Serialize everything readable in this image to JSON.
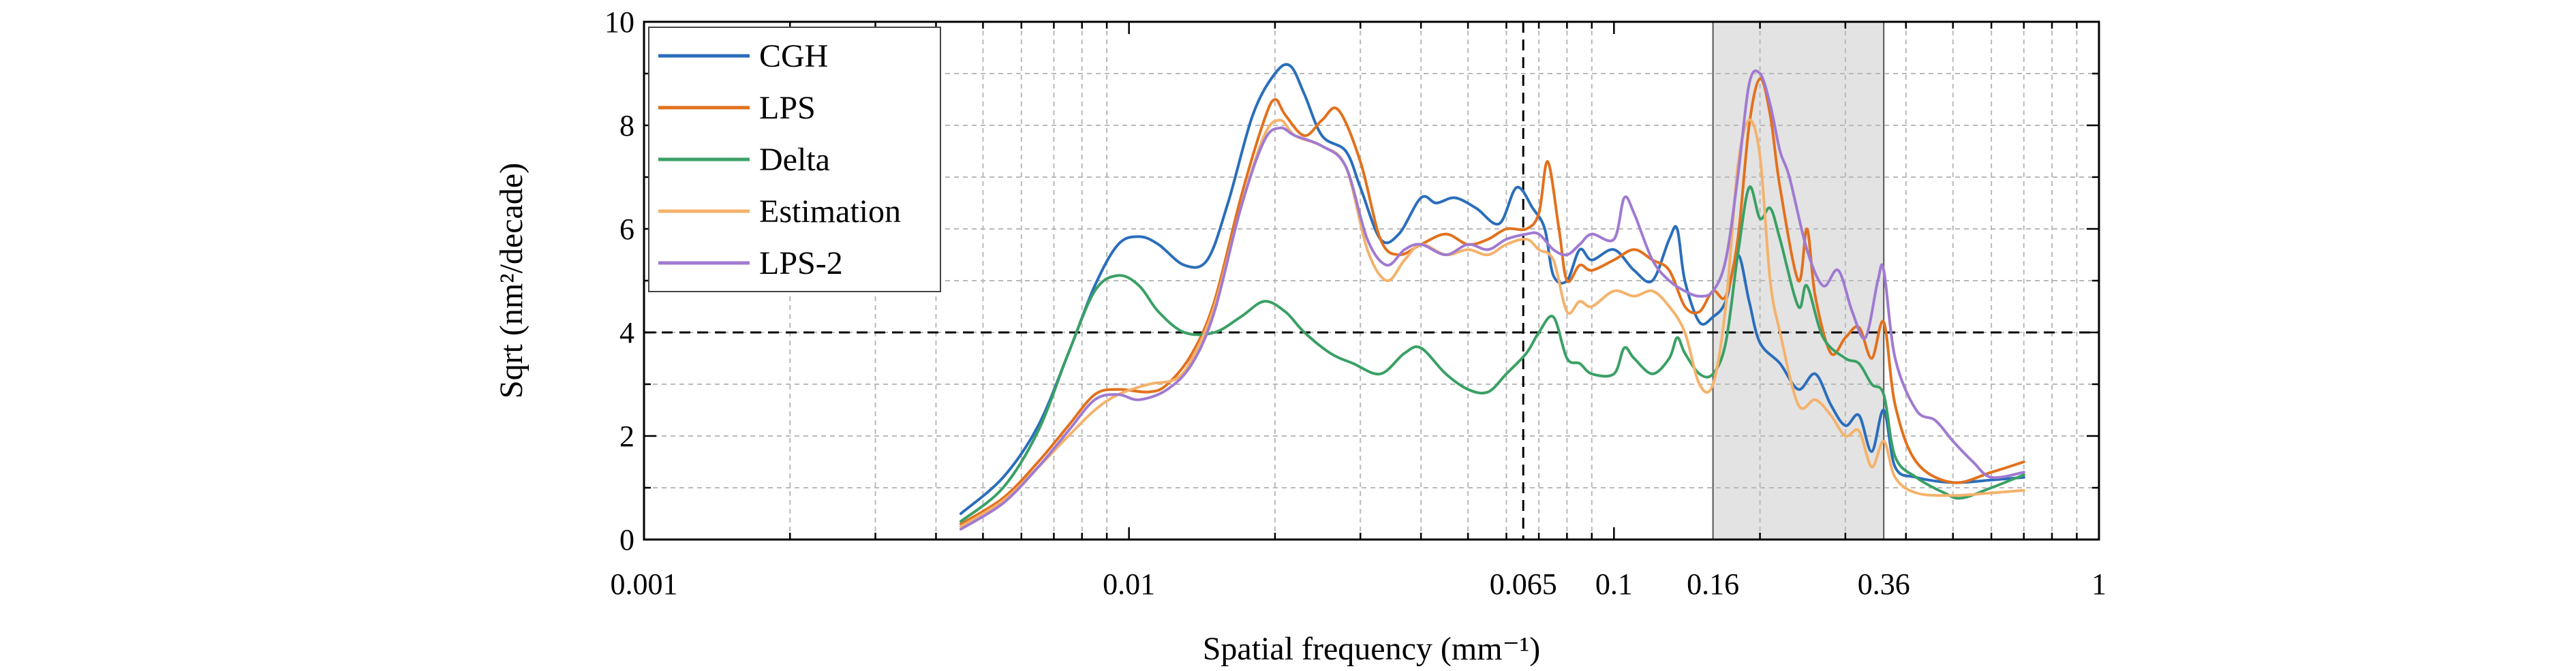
{
  "chart_data": {
    "type": "line",
    "title": "",
    "xlabel": "Spatial frequency (mm⁻¹)",
    "ylabel": "Sqrt (nm²/decade)",
    "xscale": "log",
    "xlim": [
      0.001,
      1
    ],
    "ylim": [
      0,
      10
    ],
    "grid": true,
    "legend_position": "top-left",
    "x_tick_labels": [
      {
        "value": 0.001,
        "label": "0.001"
      },
      {
        "value": 0.01,
        "label": "0.01"
      },
      {
        "value": 0.065,
        "label": "0.065"
      },
      {
        "value": 0.1,
        "label": "0.1"
      },
      {
        "value": 0.16,
        "label": "0.16"
      },
      {
        "value": 0.36,
        "label": "0.36"
      },
      {
        "value": 1,
        "label": "1"
      }
    ],
    "y_tick_labels": [
      {
        "value": 0,
        "label": "0"
      },
      {
        "value": 2,
        "label": "2"
      },
      {
        "value": 4,
        "label": "4"
      },
      {
        "value": 6,
        "label": "6"
      },
      {
        "value": 8,
        "label": "8"
      },
      {
        "value": 10,
        "label": "10"
      }
    ],
    "reference_lines": [
      {
        "orientation": "vertical",
        "value": 0.065,
        "style": "dashed"
      },
      {
        "orientation": "horizontal",
        "value": 4,
        "style": "dashed"
      }
    ],
    "shaded_band": {
      "x_from": 0.16,
      "x_to": 0.36,
      "color": "#e3e3e3"
    },
    "series": [
      {
        "name": "CGH",
        "color": "#2a6ebb",
        "points": [
          [
            0.0045,
            0.5
          ],
          [
            0.0055,
            1.2
          ],
          [
            0.0065,
            2.2
          ],
          [
            0.0075,
            3.6
          ],
          [
            0.0085,
            4.9
          ],
          [
            0.0095,
            5.7
          ],
          [
            0.0105,
            5.85
          ],
          [
            0.0115,
            5.7
          ],
          [
            0.013,
            5.3
          ],
          [
            0.0145,
            5.4
          ],
          [
            0.016,
            6.5
          ],
          [
            0.018,
            8.2
          ],
          [
            0.02,
            9.0
          ],
          [
            0.0215,
            9.15
          ],
          [
            0.023,
            8.6
          ],
          [
            0.025,
            7.8
          ],
          [
            0.028,
            7.5
          ],
          [
            0.03,
            6.8
          ],
          [
            0.033,
            5.8
          ],
          [
            0.036,
            5.9
          ],
          [
            0.04,
            6.6
          ],
          [
            0.043,
            6.5
          ],
          [
            0.047,
            6.6
          ],
          [
            0.052,
            6.4
          ],
          [
            0.058,
            6.1
          ],
          [
            0.063,
            6.8
          ],
          [
            0.068,
            6.4
          ],
          [
            0.072,
            6.0
          ],
          [
            0.075,
            5.1
          ],
          [
            0.08,
            5.0
          ],
          [
            0.085,
            5.6
          ],
          [
            0.09,
            5.4
          ],
          [
            0.1,
            5.6
          ],
          [
            0.11,
            5.2
          ],
          [
            0.12,
            5.0
          ],
          [
            0.13,
            5.8
          ],
          [
            0.135,
            6.0
          ],
          [
            0.14,
            5.0
          ],
          [
            0.15,
            4.2
          ],
          [
            0.16,
            4.3
          ],
          [
            0.17,
            4.6
          ],
          [
            0.18,
            5.5
          ],
          [
            0.19,
            4.6
          ],
          [
            0.2,
            3.8
          ],
          [
            0.22,
            3.4
          ],
          [
            0.24,
            2.9
          ],
          [
            0.26,
            3.2
          ],
          [
            0.28,
            2.6
          ],
          [
            0.3,
            2.2
          ],
          [
            0.32,
            2.4
          ],
          [
            0.34,
            1.7
          ],
          [
            0.36,
            2.5
          ],
          [
            0.38,
            1.4
          ],
          [
            0.42,
            1.2
          ],
          [
            0.5,
            1.1
          ],
          [
            0.6,
            1.15
          ],
          [
            0.7,
            1.2
          ]
        ]
      },
      {
        "name": "LPS",
        "color": "#e2711d",
        "points": [
          [
            0.0045,
            0.3
          ],
          [
            0.0055,
            0.8
          ],
          [
            0.0065,
            1.5
          ],
          [
            0.0075,
            2.2
          ],
          [
            0.0085,
            2.8
          ],
          [
            0.0095,
            2.9
          ],
          [
            0.011,
            2.85
          ],
          [
            0.012,
            3.0
          ],
          [
            0.0135,
            3.6
          ],
          [
            0.015,
            4.6
          ],
          [
            0.017,
            6.6
          ],
          [
            0.019,
            8.1
          ],
          [
            0.02,
            8.5
          ],
          [
            0.021,
            8.2
          ],
          [
            0.023,
            7.8
          ],
          [
            0.025,
            8.1
          ],
          [
            0.027,
            8.3
          ],
          [
            0.03,
            7.3
          ],
          [
            0.033,
            5.8
          ],
          [
            0.036,
            5.5
          ],
          [
            0.04,
            5.7
          ],
          [
            0.045,
            5.9
          ],
          [
            0.05,
            5.7
          ],
          [
            0.055,
            5.8
          ],
          [
            0.06,
            6.0
          ],
          [
            0.066,
            6.0
          ],
          [
            0.07,
            6.3
          ],
          [
            0.073,
            7.3
          ],
          [
            0.077,
            6.0
          ],
          [
            0.08,
            5.0
          ],
          [
            0.085,
            5.3
          ],
          [
            0.09,
            5.2
          ],
          [
            0.1,
            5.4
          ],
          [
            0.11,
            5.6
          ],
          [
            0.12,
            5.4
          ],
          [
            0.13,
            5.2
          ],
          [
            0.14,
            4.5
          ],
          [
            0.15,
            4.4
          ],
          [
            0.16,
            4.8
          ],
          [
            0.17,
            4.7
          ],
          [
            0.18,
            5.8
          ],
          [
            0.19,
            8.0
          ],
          [
            0.2,
            8.9
          ],
          [
            0.21,
            8.2
          ],
          [
            0.22,
            6.8
          ],
          [
            0.24,
            5.0
          ],
          [
            0.25,
            6.0
          ],
          [
            0.26,
            4.7
          ],
          [
            0.28,
            3.6
          ],
          [
            0.3,
            3.9
          ],
          [
            0.32,
            4.1
          ],
          [
            0.34,
            3.5
          ],
          [
            0.36,
            4.2
          ],
          [
            0.38,
            2.6
          ],
          [
            0.42,
            1.5
          ],
          [
            0.5,
            1.1
          ],
          [
            0.6,
            1.3
          ],
          [
            0.7,
            1.5
          ]
        ]
      },
      {
        "name": "Delta",
        "color": "#3aa065",
        "points": [
          [
            0.0045,
            0.35
          ],
          [
            0.0055,
            1.0
          ],
          [
            0.0065,
            2.1
          ],
          [
            0.0075,
            3.6
          ],
          [
            0.0085,
            4.8
          ],
          [
            0.0095,
            5.1
          ],
          [
            0.0105,
            4.9
          ],
          [
            0.0115,
            4.4
          ],
          [
            0.013,
            4.0
          ],
          [
            0.015,
            4.0
          ],
          [
            0.017,
            4.3
          ],
          [
            0.019,
            4.6
          ],
          [
            0.021,
            4.4
          ],
          [
            0.023,
            4.0
          ],
          [
            0.026,
            3.6
          ],
          [
            0.029,
            3.4
          ],
          [
            0.033,
            3.2
          ],
          [
            0.037,
            3.6
          ],
          [
            0.04,
            3.7
          ],
          [
            0.045,
            3.2
          ],
          [
            0.05,
            2.9
          ],
          [
            0.055,
            2.85
          ],
          [
            0.06,
            3.2
          ],
          [
            0.066,
            3.6
          ],
          [
            0.07,
            4.0
          ],
          [
            0.075,
            4.3
          ],
          [
            0.08,
            3.5
          ],
          [
            0.085,
            3.4
          ],
          [
            0.09,
            3.2
          ],
          [
            0.1,
            3.2
          ],
          [
            0.105,
            3.7
          ],
          [
            0.11,
            3.5
          ],
          [
            0.12,
            3.2
          ],
          [
            0.13,
            3.5
          ],
          [
            0.135,
            3.9
          ],
          [
            0.14,
            3.6
          ],
          [
            0.15,
            3.2
          ],
          [
            0.16,
            3.2
          ],
          [
            0.17,
            3.8
          ],
          [
            0.18,
            5.5
          ],
          [
            0.19,
            6.8
          ],
          [
            0.2,
            6.2
          ],
          [
            0.21,
            6.4
          ],
          [
            0.22,
            5.8
          ],
          [
            0.24,
            4.5
          ],
          [
            0.25,
            4.9
          ],
          [
            0.27,
            3.9
          ],
          [
            0.3,
            3.5
          ],
          [
            0.32,
            3.4
          ],
          [
            0.34,
            3.0
          ],
          [
            0.36,
            2.8
          ],
          [
            0.38,
            1.6
          ],
          [
            0.42,
            1.2
          ],
          [
            0.48,
            0.9
          ],
          [
            0.52,
            0.8
          ],
          [
            0.6,
            1.0
          ],
          [
            0.7,
            1.25
          ]
        ]
      },
      {
        "name": "Estimation",
        "color": "#f4b26b",
        "points": [
          [
            0.0045,
            0.25
          ],
          [
            0.0055,
            0.75
          ],
          [
            0.0065,
            1.4
          ],
          [
            0.0075,
            2.0
          ],
          [
            0.0085,
            2.5
          ],
          [
            0.0095,
            2.8
          ],
          [
            0.011,
            3.0
          ],
          [
            0.0125,
            3.1
          ],
          [
            0.0135,
            3.5
          ],
          [
            0.015,
            4.5
          ],
          [
            0.017,
            6.4
          ],
          [
            0.019,
            7.8
          ],
          [
            0.0205,
            8.1
          ],
          [
            0.022,
            7.8
          ],
          [
            0.025,
            7.6
          ],
          [
            0.028,
            7.2
          ],
          [
            0.031,
            5.6
          ],
          [
            0.034,
            5.0
          ],
          [
            0.037,
            5.4
          ],
          [
            0.04,
            5.7
          ],
          [
            0.045,
            5.5
          ],
          [
            0.05,
            5.6
          ],
          [
            0.055,
            5.5
          ],
          [
            0.06,
            5.7
          ],
          [
            0.066,
            5.8
          ],
          [
            0.07,
            5.6
          ],
          [
            0.075,
            5.4
          ],
          [
            0.08,
            4.4
          ],
          [
            0.085,
            4.6
          ],
          [
            0.09,
            4.5
          ],
          [
            0.1,
            4.8
          ],
          [
            0.11,
            4.7
          ],
          [
            0.12,
            4.8
          ],
          [
            0.13,
            4.5
          ],
          [
            0.14,
            4.0
          ],
          [
            0.15,
            3.0
          ],
          [
            0.16,
            3.0
          ],
          [
            0.17,
            4.5
          ],
          [
            0.18,
            7.2
          ],
          [
            0.19,
            8.1
          ],
          [
            0.2,
            7.4
          ],
          [
            0.21,
            5.0
          ],
          [
            0.22,
            4.0
          ],
          [
            0.24,
            2.6
          ],
          [
            0.26,
            2.7
          ],
          [
            0.28,
            2.4
          ],
          [
            0.3,
            2.0
          ],
          [
            0.32,
            2.1
          ],
          [
            0.34,
            1.4
          ],
          [
            0.36,
            1.9
          ],
          [
            0.38,
            1.2
          ],
          [
            0.42,
            0.9
          ],
          [
            0.5,
            0.85
          ],
          [
            0.6,
            0.9
          ],
          [
            0.7,
            0.95
          ]
        ]
      },
      {
        "name": "LPS-2",
        "color": "#a07ad1",
        "points": [
          [
            0.0045,
            0.2
          ],
          [
            0.0055,
            0.7
          ],
          [
            0.0065,
            1.4
          ],
          [
            0.0075,
            2.1
          ],
          [
            0.0085,
            2.7
          ],
          [
            0.0095,
            2.8
          ],
          [
            0.0105,
            2.7
          ],
          [
            0.012,
            2.9
          ],
          [
            0.0135,
            3.4
          ],
          [
            0.015,
            4.4
          ],
          [
            0.017,
            6.4
          ],
          [
            0.019,
            7.7
          ],
          [
            0.0205,
            7.95
          ],
          [
            0.022,
            7.8
          ],
          [
            0.025,
            7.6
          ],
          [
            0.028,
            7.2
          ],
          [
            0.031,
            5.8
          ],
          [
            0.034,
            5.3
          ],
          [
            0.037,
            5.6
          ],
          [
            0.04,
            5.7
          ],
          [
            0.045,
            5.5
          ],
          [
            0.05,
            5.7
          ],
          [
            0.055,
            5.6
          ],
          [
            0.06,
            5.8
          ],
          [
            0.066,
            5.9
          ],
          [
            0.07,
            5.9
          ],
          [
            0.075,
            5.6
          ],
          [
            0.08,
            5.5
          ],
          [
            0.085,
            5.7
          ],
          [
            0.09,
            5.9
          ],
          [
            0.1,
            5.8
          ],
          [
            0.105,
            6.6
          ],
          [
            0.11,
            6.3
          ],
          [
            0.12,
            5.4
          ],
          [
            0.13,
            5.0
          ],
          [
            0.14,
            4.8
          ],
          [
            0.15,
            4.7
          ],
          [
            0.16,
            4.8
          ],
          [
            0.17,
            5.4
          ],
          [
            0.18,
            7.0
          ],
          [
            0.19,
            8.8
          ],
          [
            0.2,
            9.0
          ],
          [
            0.21,
            8.4
          ],
          [
            0.22,
            7.5
          ],
          [
            0.23,
            7.0
          ],
          [
            0.25,
            5.6
          ],
          [
            0.27,
            4.9
          ],
          [
            0.29,
            5.2
          ],
          [
            0.31,
            4.4
          ],
          [
            0.33,
            3.9
          ],
          [
            0.35,
            5.0
          ],
          [
            0.36,
            5.2
          ],
          [
            0.38,
            3.5
          ],
          [
            0.42,
            2.5
          ],
          [
            0.46,
            2.3
          ],
          [
            0.5,
            1.9
          ],
          [
            0.55,
            1.5
          ],
          [
            0.6,
            1.2
          ],
          [
            0.7,
            1.3
          ]
        ]
      }
    ]
  }
}
